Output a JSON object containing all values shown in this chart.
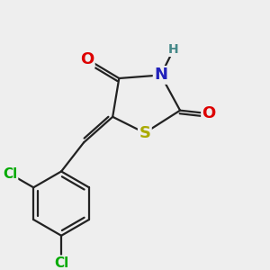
{
  "background_color": "#eeeeee",
  "atom_colors": {
    "C": "#000000",
    "N": "#2222bb",
    "O": "#dd0000",
    "S": "#aaaa00",
    "Cl": "#00aa00",
    "H": "#448888"
  },
  "bond_color": "#222222",
  "bond_width": 1.6,
  "font_size_large": 14,
  "font_size_medium": 12,
  "font_size_small": 10
}
